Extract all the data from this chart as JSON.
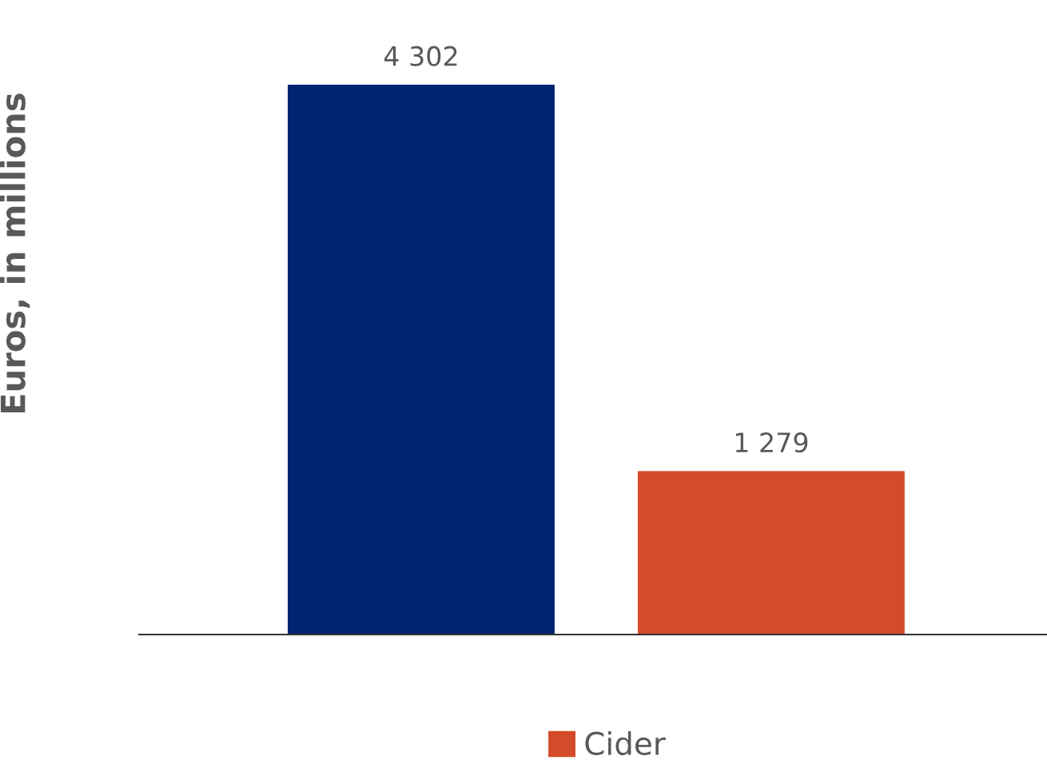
{
  "chart_data": {
    "type": "bar",
    "ylabel": "Euros, in millions",
    "categories": [
      null
    ],
    "series": [
      {
        "color": "#002570",
        "values": [
          4302
        ],
        "value_labels": [
          "4 302"
        ]
      },
      {
        "name": "Cider",
        "color": "#d34b28",
        "values": [
          1279
        ],
        "value_labels": [
          "1 279"
        ]
      }
    ],
    "legend": "bottom"
  }
}
